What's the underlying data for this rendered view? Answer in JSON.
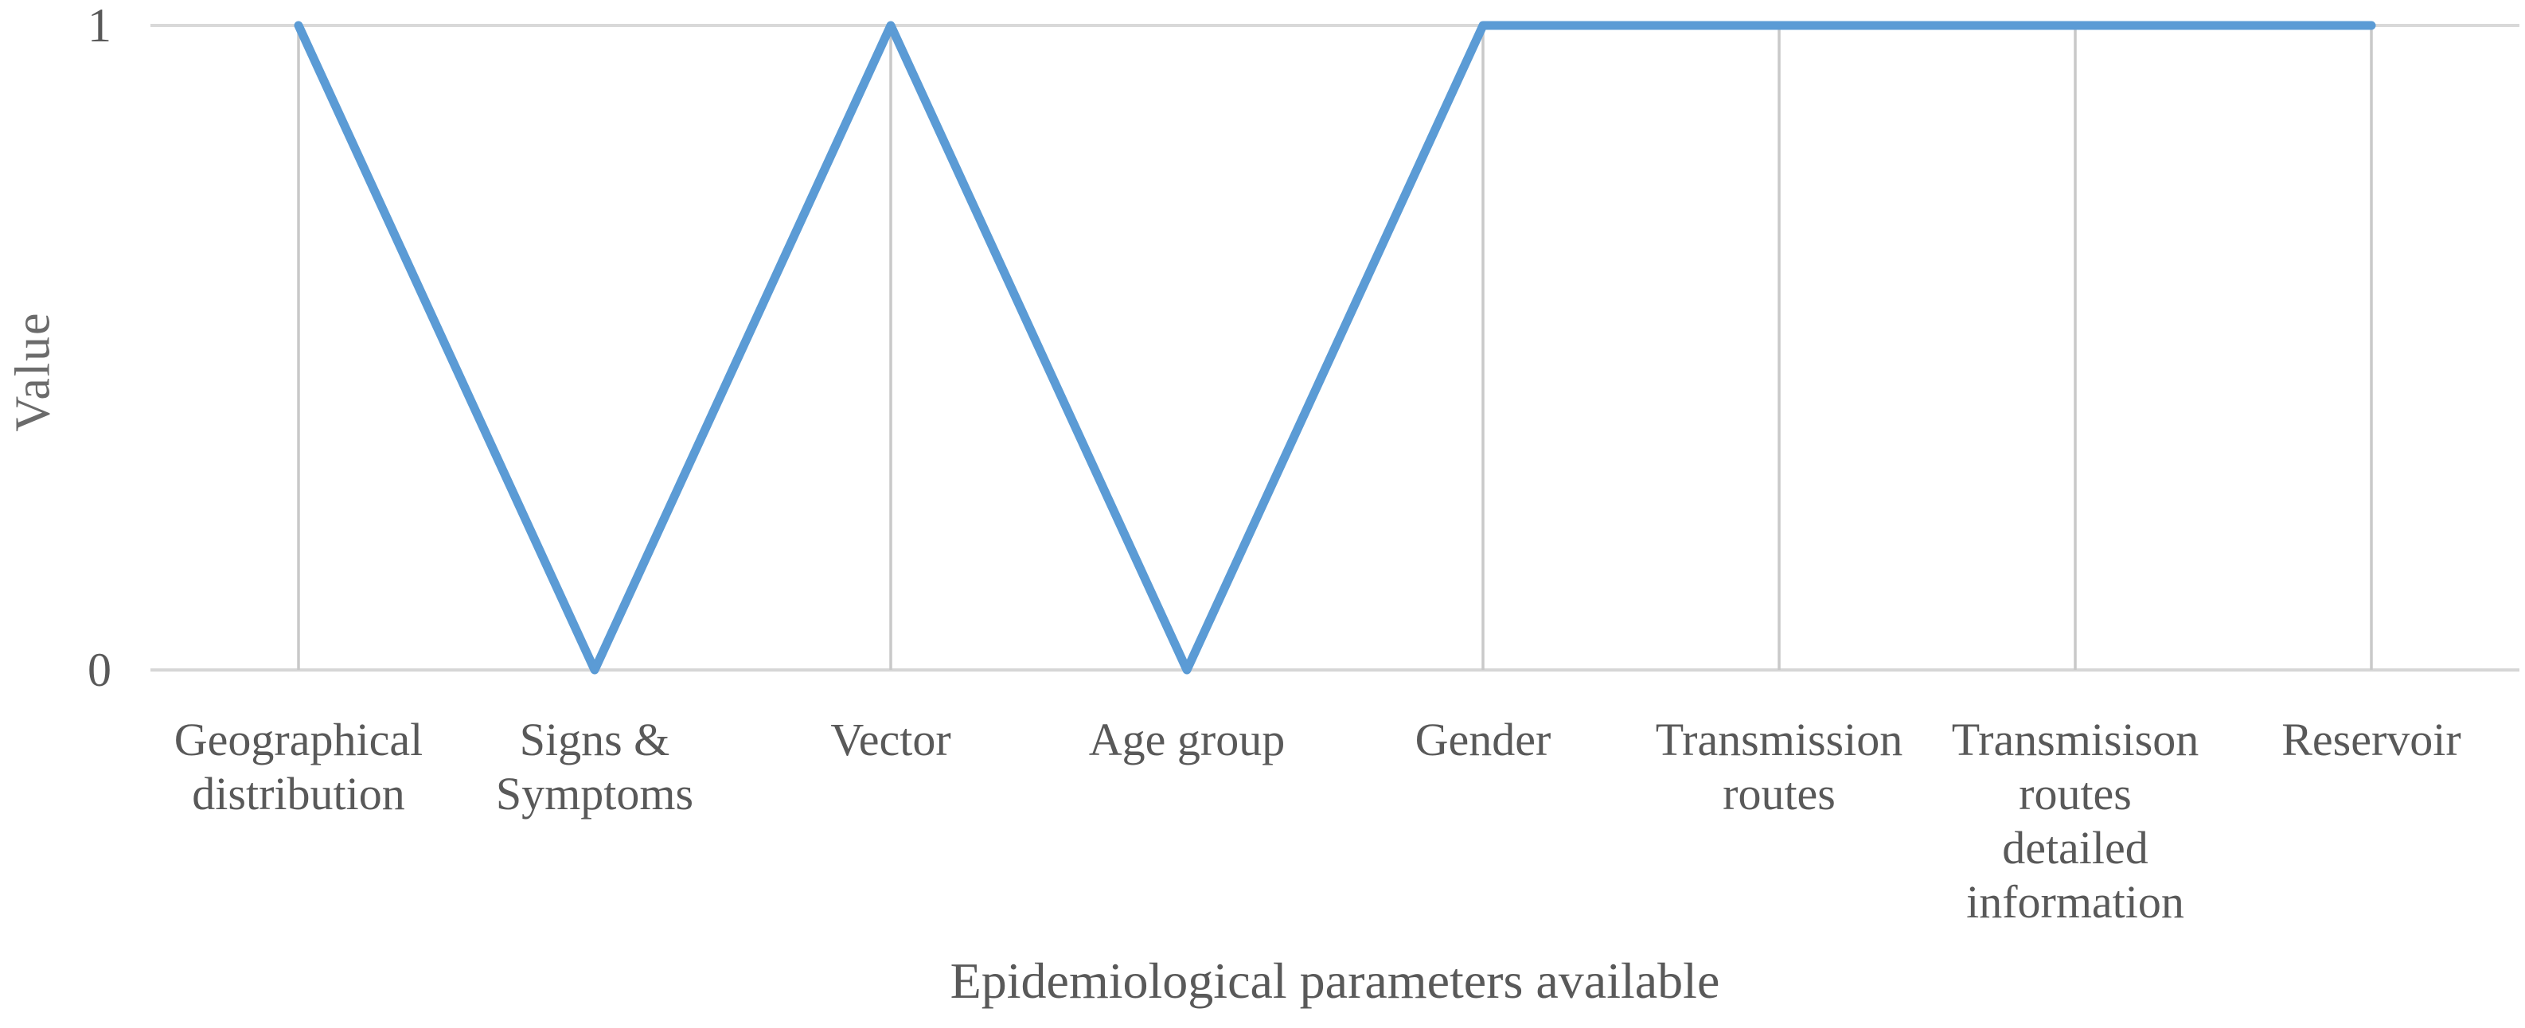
{
  "chart_data": {
    "type": "line",
    "title": "",
    "xlabel": "Epidemiological parameters available",
    "ylabel": "Value",
    "categories": [
      "Geographical distribution",
      "Signs & Symptoms",
      "Vector",
      "Age group",
      "Gender",
      "Transmission routes",
      "Transmisison routes detailed information",
      "Reservoir"
    ],
    "category_label_lines": [
      [
        "Geographical",
        "distribution"
      ],
      [
        "Signs &",
        "Symptoms"
      ],
      [
        "Vector"
      ],
      [
        "Age group"
      ],
      [
        "Gender"
      ],
      [
        "Transmission",
        "routes"
      ],
      [
        "Transmisison",
        "routes",
        "detailed",
        "information"
      ],
      [
        "Reservoir"
      ]
    ],
    "values": [
      1,
      0,
      1,
      0,
      1,
      1,
      1,
      1
    ],
    "ylim": [
      0,
      1
    ],
    "yticks": [
      "0",
      "1"
    ],
    "legend": "none",
    "grid": "horizontal lines at y=0 and y=1; vertical drop lines only at points with value 1",
    "colors": {
      "line": "#5B9BD5",
      "gridline_top": "#D9D9D9",
      "axis_line": "#D6D6D6",
      "drop_line": "#C9C9C9",
      "text": "#595959"
    }
  }
}
